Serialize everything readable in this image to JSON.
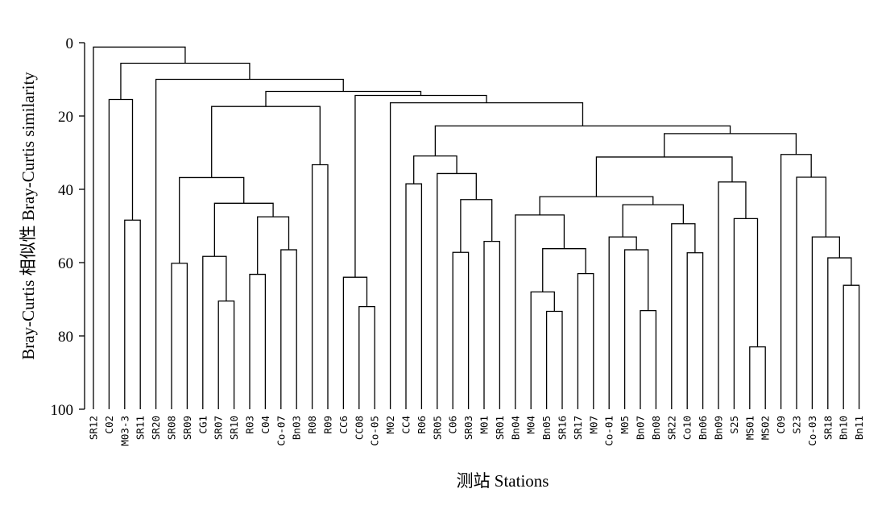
{
  "chart_data": {
    "type": "dendrogram",
    "ylabel": "Bray-Curtis 相似性  Bray-Curtis similarity",
    "xlabel": "测站  Stations",
    "ylim": [
      0,
      100
    ],
    "y_inverted": true,
    "yticks": [
      0,
      20,
      40,
      60,
      80,
      100
    ],
    "leaves": [
      "SR12",
      "C02",
      "M03-3",
      "SR11",
      "SR20",
      "SR08",
      "SR09",
      "CG1",
      "SR07",
      "SR10",
      "R03",
      "C04",
      "Co-07",
      "Bn03",
      "R08",
      "R09",
      "CC6",
      "CC08",
      "Co-05",
      "M02",
      "CC4",
      "R06",
      "SR05",
      "C06",
      "SR03",
      "M01",
      "SR01",
      "Bn04",
      "M04",
      "Bn05",
      "SR16",
      "SR17",
      "M07",
      "Co-01",
      "M05",
      "Bn07",
      "Bn08",
      "SR22",
      "Co10",
      "Bn06",
      "Bn09",
      "S25",
      "MS01",
      "MS02",
      "C09",
      "S23",
      "Co-03",
      "SR18",
      "Bn10",
      "Bn11"
    ],
    "merges": [
      {
        "a": "SR16",
        "b": "Bn05",
        "similarity": 73.3,
        "id": "m1"
      },
      {
        "a": "Bn08",
        "b": "Bn07",
        "similarity": 73.1,
        "id": "m2"
      },
      {
        "a": "CC08",
        "b": "Co-05",
        "similarity": 72.0,
        "id": "m3"
      },
      {
        "a": "SR07",
        "b": "SR10",
        "similarity": 70.5,
        "id": "m4"
      },
      {
        "a": "M04",
        "b": "m1",
        "similarity": 68.0,
        "id": "m5"
      },
      {
        "a": "Bn10",
        "b": "Bn11",
        "similarity": 66.2,
        "id": "m6"
      },
      {
        "a": "CC6",
        "b": "m3",
        "similarity": 64.0,
        "id": "m7"
      },
      {
        "a": "R03",
        "b": "C04",
        "similarity": 63.2,
        "id": "m8"
      },
      {
        "a": "SR17",
        "b": "M07",
        "similarity": 63.0,
        "id": "m9"
      },
      {
        "a": "SR08",
        "b": "SR09",
        "similarity": 60.2,
        "id": "m10"
      },
      {
        "a": "SR18",
        "b": "m6",
        "similarity": 58.7,
        "id": "m11"
      },
      {
        "a": "CG1",
        "b": "m4",
        "similarity": 58.3,
        "id": "m12"
      },
      {
        "a": "SR03",
        "b": "C06",
        "similarity": 57.2,
        "id": "m13"
      },
      {
        "a": "Co10",
        "b": "Bn06",
        "similarity": 57.3,
        "id": "m14"
      },
      {
        "a": "Co-07",
        "b": "Bn03",
        "similarity": 56.5,
        "id": "m15"
      },
      {
        "a": "M05",
        "b": "m2",
        "similarity": 56.5,
        "id": "m16"
      },
      {
        "a": "m5",
        "b": "m9",
        "similarity": 56.2,
        "id": "m17"
      },
      {
        "a": "M01",
        "b": "SR01",
        "similarity": 54.2,
        "id": "m18"
      },
      {
        "a": "Co-01",
        "b": "m16",
        "similarity": 53.0,
        "id": "m19"
      },
      {
        "a": "Co-03",
        "b": "m11",
        "similarity": 53.0,
        "id": "m20"
      },
      {
        "a": "SR22",
        "b": "m14",
        "similarity": 49.4,
        "id": "m21"
      },
      {
        "a": "M03-3",
        "b": "SR11",
        "similarity": 48.4,
        "id": "m22"
      },
      {
        "a": "MS01",
        "b": "MS02",
        "similarity": 83.0,
        "id": "m23"
      },
      {
        "a": "S25",
        "b": "m23",
        "similarity": 48.0,
        "id": "m24"
      },
      {
        "a": "m8",
        "b": "m15",
        "similarity": 47.5,
        "id": "m25"
      },
      {
        "a": "Bn04",
        "b": "m17",
        "similarity": 47.0,
        "id": "m26"
      },
      {
        "a": "m19",
        "b": "m21",
        "similarity": 44.2,
        "id": "m27"
      },
      {
        "a": "m12",
        "b": "m25",
        "similarity": 43.8,
        "id": "m28"
      },
      {
        "a": "m13",
        "b": "m18",
        "similarity": 42.8,
        "id": "m29"
      },
      {
        "a": "m26",
        "b": "m27",
        "similarity": 42.0,
        "id": "m30"
      },
      {
        "a": "CC4",
        "b": "R06",
        "similarity": 38.5,
        "id": "m31"
      },
      {
        "a": "Bn09",
        "b": "m24",
        "similarity": 38.0,
        "id": "m32"
      },
      {
        "a": "m10",
        "b": "m28",
        "similarity": 36.8,
        "id": "m33"
      },
      {
        "a": "S23",
        "b": "m20",
        "similarity": 36.7,
        "id": "m34"
      },
      {
        "a": "SR05",
        "b": "m29",
        "similarity": 35.7,
        "id": "m35"
      },
      {
        "a": "R08",
        "b": "R09",
        "similarity": 33.3,
        "id": "m36"
      },
      {
        "a": "m30",
        "b": "m32",
        "similarity": 31.2,
        "id": "m37"
      },
      {
        "a": "m31",
        "b": "m35",
        "similarity": 30.9,
        "id": "m38"
      },
      {
        "a": "C09",
        "b": "m34",
        "similarity": 30.5,
        "id": "m39"
      },
      {
        "a": "m37",
        "b": "m39",
        "similarity": 24.8,
        "id": "m40"
      },
      {
        "a": "m38",
        "b": "m40",
        "similarity": 22.7,
        "id": "m41"
      },
      {
        "a": "m33",
        "b": "m36",
        "similarity": 17.4,
        "id": "m42"
      },
      {
        "a": "M02",
        "b": "m41",
        "similarity": 16.4,
        "id": "m43"
      },
      {
        "a": "m7",
        "b": "m43",
        "similarity": 14.4,
        "id": "m44"
      },
      {
        "a": "m42",
        "b": "m44",
        "similarity": 13.3,
        "id": "m45"
      },
      {
        "a": "SR20",
        "b": "m45",
        "similarity": 10.0,
        "id": "m46"
      },
      {
        "a": "C02",
        "b": "m22",
        "similarity": 15.5,
        "id": "m47"
      },
      {
        "a": "m47",
        "b": "m46",
        "similarity": 5.6,
        "id": "m48"
      },
      {
        "a": "SR12",
        "b": "m48",
        "similarity": 1.2,
        "id": "m49"
      }
    ]
  }
}
